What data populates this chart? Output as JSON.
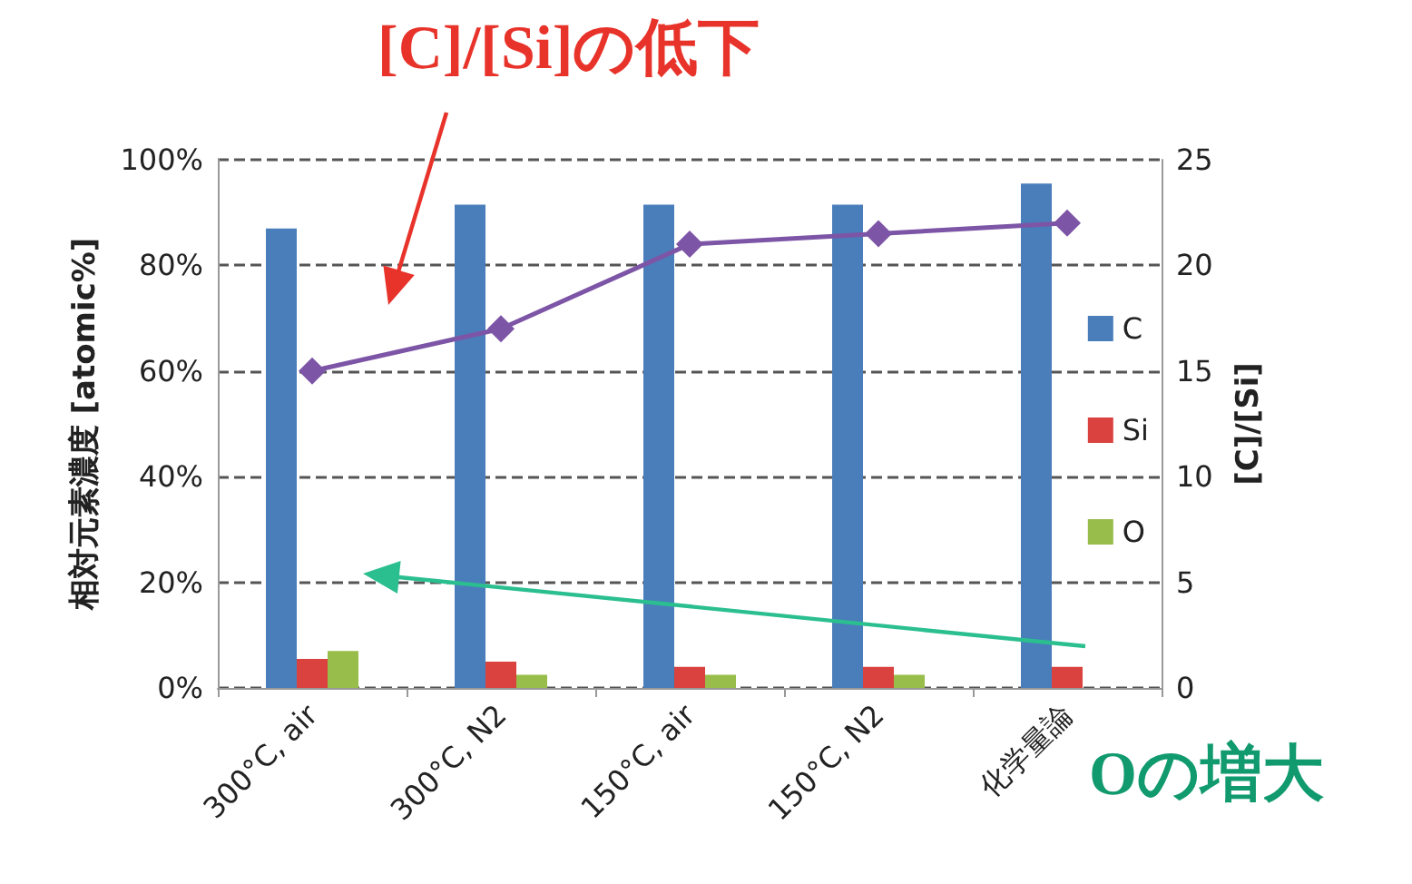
{
  "chart_data": {
    "type": "bar",
    "categories": [
      "300°C, air",
      "300°C, N2",
      "150°C, air",
      "150°C, N2",
      "化学量論"
    ],
    "series": [
      {
        "name": "C",
        "color": "#4a7ebb",
        "values": [
          87,
          91.5,
          91.5,
          91.5,
          95.5
        ]
      },
      {
        "name": "Si",
        "color": "#d9423f",
        "values": [
          5.5,
          5,
          4,
          4,
          4
        ]
      },
      {
        "name": "O",
        "color": "#98bd4a",
        "values": [
          7,
          2.5,
          2.5,
          2.5,
          null
        ]
      },
      {
        "type": "line",
        "axis": "y2",
        "color": "#7d55a6",
        "values": [
          15,
          17,
          21,
          21.5,
          22
        ]
      }
    ],
    "ylabel": "相対元素濃度 [atomic%]",
    "y2label": "[C]/[Si]",
    "ylim": [
      0,
      100
    ],
    "yticks": [
      {
        "value": 0,
        "label": "0%"
      },
      {
        "value": 20,
        "label": "20%"
      },
      {
        "value": 40,
        "label": "40%"
      },
      {
        "value": 60,
        "label": "60%"
      },
      {
        "value": 80,
        "label": "80%"
      },
      {
        "value": 100,
        "label": "100%"
      }
    ],
    "y2lim": [
      0,
      25
    ],
    "y2ticks": [
      0,
      5,
      10,
      15,
      20,
      25
    ],
    "annotations": [
      "[C]/[Si]の低下",
      "Oの増大"
    ],
    "grid": "y",
    "legend": "right",
    "marker": "diamond",
    "line_style": "solid"
  }
}
